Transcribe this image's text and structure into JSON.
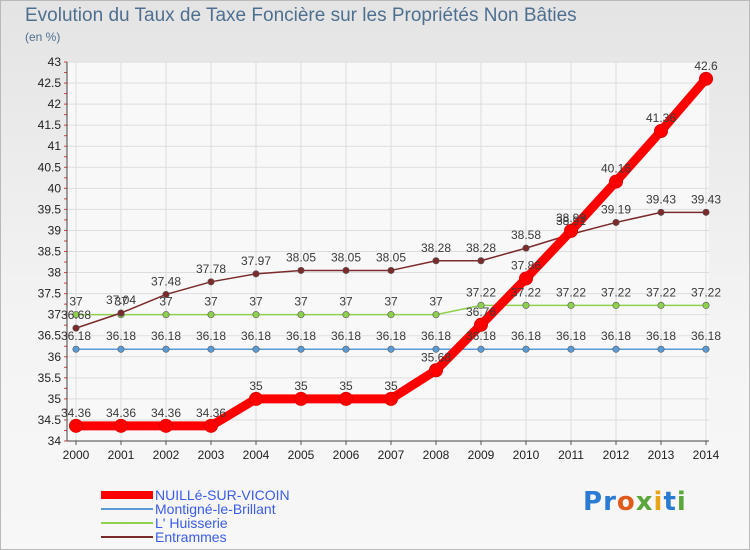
{
  "title": "Evolution du Taux de Taxe Foncière sur les Propriétés Non Bâties",
  "unit_label": "(en %)",
  "logo": {
    "text": "Proxiti",
    "colors": [
      "#2a7bd4",
      "#e05a1c",
      "#5ba73c",
      "#e8a519"
    ]
  },
  "chart_data": {
    "type": "line",
    "title": "Evolution du Taux de Taxe Foncière sur les Propriétés Non Bâties",
    "ylabel": "(en %)",
    "ylim": [
      34,
      43
    ],
    "yticks": [
      "34",
      "34.5",
      "35",
      "35.5",
      "36",
      "36.5",
      "37",
      "37.5",
      "38",
      "38.5",
      "39",
      "39.5",
      "40",
      "40.5",
      "41",
      "41.5",
      "42",
      "42.5",
      "43"
    ],
    "categories": [
      "2000",
      "2001",
      "2002",
      "2003",
      "2004",
      "2005",
      "2006",
      "2007",
      "2008",
      "2009",
      "2010",
      "2011",
      "2012",
      "2013",
      "2014"
    ],
    "grid": true,
    "legend": "bottom-left",
    "series": [
      {
        "name": "NUILLé-SUR-VICOIN",
        "color": "#ff0000",
        "values": [
          34.36,
          34.36,
          34.36,
          34.36,
          35,
          35,
          35,
          35,
          35.68,
          36.76,
          37.86,
          38.99,
          40.16,
          41.36,
          42.6
        ],
        "labels": [
          "34.36",
          "34.36",
          "34.36",
          "34.36",
          "35",
          "35",
          "35",
          "35",
          "35.68",
          "36.76",
          "37.86",
          "38.99",
          "40.16",
          "41.36",
          "42.6"
        ]
      },
      {
        "name": "Montigné-le-Brillant",
        "color": "#5b9bd5",
        "values": [
          36.18,
          36.18,
          36.18,
          36.18,
          36.18,
          36.18,
          36.18,
          36.18,
          36.18,
          36.18,
          36.18,
          36.18,
          36.18,
          36.18,
          36.18
        ],
        "labels": [
          "36.18",
          "36.18",
          "36.18",
          "36.18",
          "36.18",
          "36.18",
          "36.18",
          "36.18",
          "36.18",
          "36.18",
          "36.18",
          "36.18",
          "36.18",
          "36.18",
          "36.18"
        ]
      },
      {
        "name": "L' Huisserie",
        "color": "#8fd14f",
        "values": [
          37,
          37,
          37,
          37,
          37,
          37,
          37,
          37,
          37,
          37.22,
          37.22,
          37.22,
          37.22,
          37.22,
          37.22
        ],
        "labels": [
          "37",
          "37",
          "37",
          "37",
          "37",
          "37",
          "37",
          "37",
          "37",
          "37.22",
          "37.22",
          "37.22",
          "37.22",
          "37.22",
          "37.22"
        ]
      },
      {
        "name": "Entrammes",
        "color": "#7b2b2b",
        "values": [
          36.68,
          37.04,
          37.48,
          37.78,
          37.97,
          38.05,
          38.05,
          38.05,
          38.28,
          38.28,
          38.58,
          38.91,
          39.19,
          39.43,
          39.43
        ],
        "labels": [
          "36.68",
          "37.04",
          "37.48",
          "37.78",
          "37.97",
          "38.05",
          "38.05",
          "38.05",
          "38.28",
          "38.28",
          "38.58",
          "38.91",
          "39.19",
          "39.43",
          "39.43"
        ]
      }
    ]
  }
}
